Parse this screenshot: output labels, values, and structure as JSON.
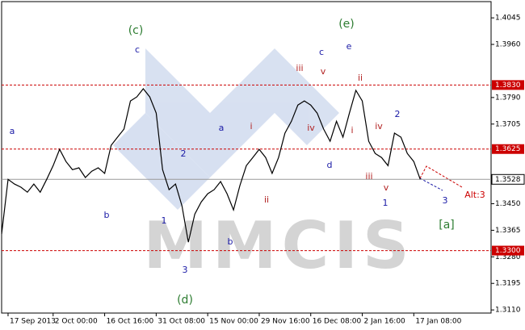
{
  "chart_data": {
    "type": "line",
    "watermark": "MMCIS",
    "x": [
      0,
      1,
      2,
      3,
      4,
      5,
      6,
      7,
      8,
      9,
      10,
      11,
      12,
      13,
      14,
      15,
      16,
      17,
      18,
      19,
      20,
      21,
      22,
      23,
      24,
      25,
      26,
      27,
      28,
      29,
      30,
      31,
      32,
      33,
      34,
      35,
      36,
      37,
      38,
      39,
      40,
      41,
      42,
      43,
      44,
      45,
      46,
      47,
      48,
      49,
      50,
      51,
      52,
      53,
      54,
      55,
      56,
      57,
      58,
      59,
      60,
      61,
      62,
      63,
      64,
      65
    ],
    "series": [
      {
        "color": "#000000",
        "values": [
          1.3353,
          1.3528,
          1.3513,
          1.3503,
          1.3487,
          1.3513,
          1.3487,
          1.3528,
          1.3572,
          1.3624,
          1.3585,
          1.3559,
          1.3565,
          1.3534,
          1.3554,
          1.3565,
          1.3547,
          1.3637,
          1.3663,
          1.3689,
          1.3779,
          1.3792,
          1.3818,
          1.3792,
          1.374,
          1.3559,
          1.3495,
          1.3513,
          1.3443,
          1.3327,
          1.3417,
          1.3456,
          1.3482,
          1.3495,
          1.3521,
          1.3482,
          1.343,
          1.3508,
          1.3572,
          1.3598,
          1.3624,
          1.3598,
          1.3547,
          1.3598,
          1.3676,
          1.3714,
          1.3766,
          1.3779,
          1.3766,
          1.374,
          1.3689,
          1.365,
          1.3714,
          1.3663,
          1.374,
          1.3813,
          1.3779,
          1.365,
          1.3611,
          1.3598,
          1.3572,
          1.3676,
          1.3663,
          1.3611,
          1.3585,
          1.3528
        ]
      }
    ],
    "xlim": [
      0,
      76
    ],
    "xticks": [
      {
        "value": 1,
        "label": "17 Sep 2013"
      },
      {
        "value": 8,
        "label": "2 Oct 00:00"
      },
      {
        "value": 16,
        "label": "16 Oct 16:00"
      },
      {
        "value": 24,
        "label": "31 Oct 08:00"
      },
      {
        "value": 32,
        "label": "15 Nov 00:00"
      },
      {
        "value": 40,
        "label": "29 Nov 16:00"
      },
      {
        "value": 48,
        "label": "16 Dec 08:00"
      },
      {
        "value": 56,
        "label": "2 Jan 16:00"
      },
      {
        "value": 64,
        "label": "17 Jan 08:00"
      }
    ],
    "ylim": [
      1.31,
      1.4097
    ],
    "yticks": [
      1.4045,
      {
        "value": 1.396,
        "label": "1.3960"
      },
      {
        "value": 1.379,
        "label": "1.3790"
      },
      1.3705,
      {
        "value": 1.345,
        "label": "1.3450"
      },
      1.3365,
      {
        "value": 1.328,
        "label": "1.3280"
      },
      1.3195,
      {
        "value": 1.311,
        "label": "1.3110"
      }
    ],
    "levels": [
      {
        "value": 1.383,
        "label": "1.3830"
      },
      1.3625,
      {
        "value": 1.33,
        "label": "1.3300"
      }
    ],
    "level_color": "#cc0000",
    "current": 1.3528,
    "annotations": [
      {
        "text": "(c)",
        "color": "#2e7d32"
      },
      {
        "text": "c",
        "color": "#1a1aa6"
      },
      {
        "text": "a",
        "color": "#1a1aa6"
      },
      {
        "text": "b",
        "color": "#1a1aa6"
      },
      {
        "text": "2",
        "color": "#1a1aa6"
      },
      {
        "text": "1",
        "color": "#1a1aa6"
      },
      {
        "text": "3",
        "color": "#1a1aa6"
      },
      {
        "text": "(d)",
        "color": "#2e7d32"
      },
      {
        "text": "a",
        "color": "#1a1aa6"
      },
      {
        "text": "i",
        "color": "#b22222"
      },
      {
        "text": "ii",
        "color": "#b22222"
      },
      {
        "text": "b",
        "color": "#1a1aa6"
      },
      {
        "text": "iii",
        "color": "#b22222"
      },
      {
        "text": "c",
        "color": "#1a1aa6"
      },
      {
        "text": "v",
        "color": "#b22222"
      },
      {
        "text": "(e)",
        "color": "#2e7d32"
      },
      {
        "text": "e",
        "color": "#1a1aa6"
      },
      {
        "text": "iv",
        "color": "#b22222"
      },
      {
        "text": "i",
        "color": "#b22222"
      },
      {
        "text": "ii",
        "color": "#b22222"
      },
      {
        "text": "d",
        "color": "#1a1aa6"
      },
      {
        "text": "iii",
        "color": "#b22222"
      },
      {
        "text": "iv",
        "color": "#b22222"
      },
      {
        "text": "v",
        "color": "#b22222"
      },
      {
        "text": "1",
        "color": "#1a1aa6"
      },
      {
        "text": "2",
        "color": "#1a1aa6"
      },
      {
        "text": "3",
        "color": "#1a1aa6"
      },
      {
        "text": "[a]",
        "color": "#2e7d32"
      },
      {
        "text": "Alt:3",
        "color": "#cc0000"
      }
    ]
  }
}
